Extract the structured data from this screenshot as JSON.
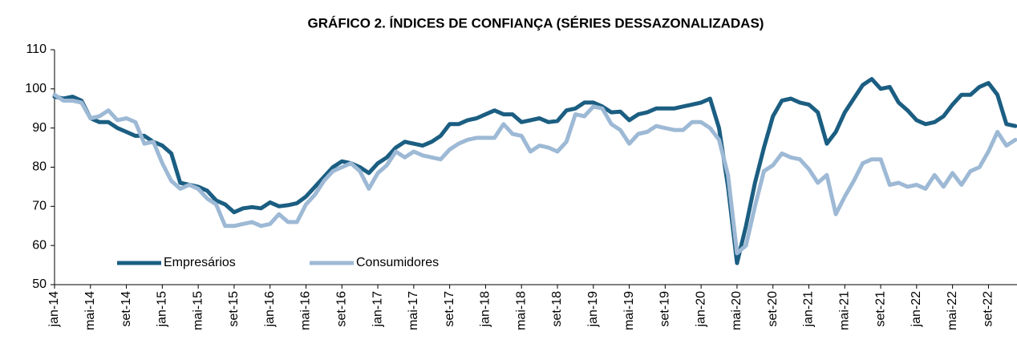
{
  "chart_data": {
    "type": "line",
    "title": "GRÁFICO 2. ÍNDICES DE CONFIANÇA (SÉRIES DESSAZONALIZADAS)",
    "categories": [
      "jan-14",
      null,
      null,
      null,
      "mai-14",
      null,
      null,
      null,
      "set-14",
      null,
      null,
      null,
      "jan-15",
      null,
      null,
      null,
      "mai-15",
      null,
      null,
      null,
      "set-15",
      null,
      null,
      null,
      "jan-16",
      null,
      null,
      null,
      "mai-16",
      null,
      null,
      null,
      "set-16",
      null,
      null,
      null,
      "jan-17",
      null,
      null,
      null,
      "mai-17",
      null,
      null,
      null,
      "set-17",
      null,
      null,
      null,
      "jan-18",
      null,
      null,
      null,
      "mai-18",
      null,
      null,
      null,
      "set-18",
      null,
      null,
      null,
      "jan-19",
      null,
      null,
      null,
      "mai-19",
      null,
      null,
      null,
      "set-19",
      null,
      null,
      null,
      "jan-20",
      null,
      null,
      null,
      "mai-20",
      null,
      null,
      null,
      "set-20",
      null,
      null,
      null,
      "jan-21",
      null,
      null,
      null,
      "mai-21",
      null,
      null,
      null,
      "set-21",
      null,
      null,
      null,
      "jan-22",
      null,
      null,
      null,
      "mai-22",
      null,
      null,
      null,
      "set-22",
      null,
      null,
      null
    ],
    "series": [
      {
        "name": "Empresários",
        "color": "#1b5e82",
        "values": [
          98,
          97.5,
          98,
          97,
          92.5,
          91.5,
          91.5,
          90,
          89,
          88,
          88,
          86.5,
          85.5,
          83.5,
          76,
          75.5,
          75,
          74,
          71.5,
          70.5,
          68.5,
          69.5,
          69.8,
          69.5,
          71,
          70,
          70.3,
          70.8,
          72.5,
          75,
          77.5,
          80,
          81.5,
          81,
          80,
          78.5,
          81,
          82.5,
          85,
          86.5,
          86,
          85.5,
          86.5,
          88,
          91,
          91,
          92,
          92.5,
          93.5,
          94.5,
          93.5,
          93.5,
          91.5,
          92,
          92.5,
          91.5,
          91.8,
          94.5,
          95,
          96.5,
          96.5,
          95.5,
          94,
          94.2,
          92,
          93.5,
          94,
          95,
          95,
          95,
          95.5,
          96,
          96.5,
          97.5,
          90,
          75,
          55.5,
          65,
          76,
          85,
          93,
          97,
          97.5,
          96.5,
          96,
          94,
          86,
          89,
          94,
          97.5,
          101,
          102.5,
          100,
          100.5,
          96.5,
          94.5,
          92,
          91,
          91.5,
          93,
          96,
          98.5,
          98.5,
          100.5,
          101.5,
          98.5,
          91,
          90.5
        ]
      },
      {
        "name": "Consumidores",
        "color": "#9db9d5",
        "values": [
          98.5,
          97,
          97,
          96.5,
          92.5,
          93,
          94.5,
          92,
          92.5,
          91.5,
          86,
          86.5,
          81,
          76.5,
          74.5,
          75.5,
          74.5,
          72,
          70.5,
          65,
          65,
          65.5,
          66,
          65,
          65.5,
          68,
          66,
          66,
          70.5,
          73,
          76.5,
          79,
          80,
          81,
          79,
          74.5,
          78.5,
          80.5,
          84,
          82.5,
          84,
          83,
          82.5,
          82,
          84.5,
          86,
          87,
          87.5,
          87.5,
          87.5,
          91,
          88.5,
          88,
          84,
          85.5,
          85,
          84,
          86.5,
          93.5,
          93,
          95.5,
          95,
          91,
          89.5,
          86,
          88.5,
          89,
          90.5,
          90,
          89.5,
          89.5,
          91.5,
          91.5,
          90,
          87,
          78,
          58,
          60,
          70,
          79,
          80.5,
          83.5,
          82.5,
          82,
          79.5,
          76,
          78,
          68,
          72.5,
          76.5,
          81,
          82,
          82,
          75.5,
          76,
          75,
          75.5,
          74.5,
          78,
          75,
          78.5,
          75.5,
          79,
          80,
          84,
          89,
          85.5,
          87
        ]
      }
    ],
    "ylim": [
      50,
      110
    ],
    "yticks": [
      50,
      60,
      70,
      80,
      90,
      100,
      110
    ],
    "legend": "lower left",
    "grid": false
  }
}
